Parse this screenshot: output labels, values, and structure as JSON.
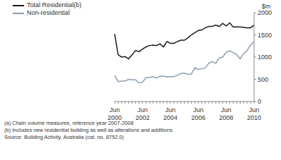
{
  "chart_data": {
    "type": "line",
    "y_label": "$m",
    "categories": [
      "Jun 2000",
      null,
      null,
      null,
      null,
      null,
      null,
      null,
      "Jun 2002",
      null,
      null,
      null,
      null,
      null,
      null,
      null,
      "Jun 2004",
      null,
      null,
      null,
      null,
      null,
      null,
      null,
      "Jun 2006",
      null,
      null,
      null,
      null,
      null,
      null,
      null,
      "Jun 2008",
      null,
      null,
      null,
      null,
      null,
      null,
      null,
      "Jun 2010"
    ],
    "series": [
      {
        "name": "Total Residential(b)",
        "color": "#1a1a1a",
        "values": [
          1520,
          1050,
          1000,
          1010,
          960,
          1050,
          1150,
          1120,
          1180,
          1230,
          1260,
          1270,
          1260,
          1300,
          1230,
          1350,
          1310,
          1310,
          1350,
          1380,
          1380,
          1430,
          1500,
          1550,
          1600,
          1610,
          1660,
          1690,
          1690,
          1720,
          1690,
          1760,
          1700,
          1770,
          1680,
          1680,
          1680,
          1670,
          1660,
          1660,
          1720
        ]
      },
      {
        "name": "Non-residential",
        "color": "#8c9cb5",
        "values": [
          590,
          450,
          460,
          460,
          500,
          490,
          490,
          420,
          430,
          540,
          540,
          560,
          530,
          570,
          570,
          550,
          560,
          560,
          590,
          630,
          640,
          610,
          620,
          760,
          720,
          740,
          760,
          860,
          900,
          860,
          980,
          1000,
          1110,
          1140,
          1100,
          1060,
          960,
          1080,
          1150,
          1270,
          1350
        ]
      }
    ],
    "ylim": [
      0,
      2000
    ],
    "yticks": [
      0,
      500,
      1000,
      1500,
      2000
    ],
    "grid": false,
    "legend": "top-left",
    "annotations": [
      "(a) Chain volume measures, reference year 2007-2008",
      "(b) Includes new residential building as well as alterations and additions",
      "Source: Building Activity, Australia (cat. no. 8752.0)"
    ]
  }
}
